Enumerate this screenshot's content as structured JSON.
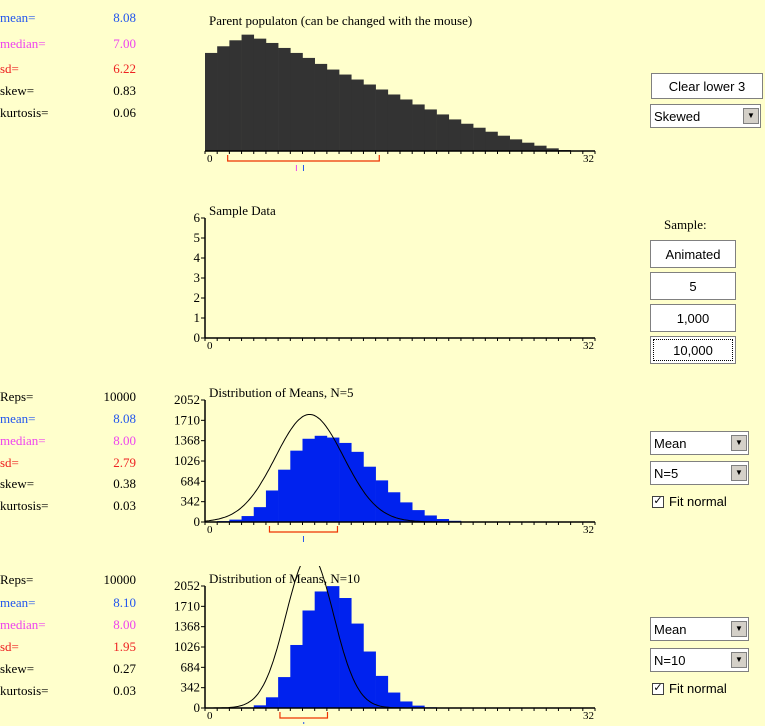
{
  "colors": {
    "mean": "#2255ee",
    "median": "#ee44ee",
    "sd": "#ee2222",
    "text": "#000000",
    "bar_parent": "#333333",
    "bar_means": "#0022ee",
    "range_box": "#ee3300"
  },
  "parent_stats": {
    "mean": {
      "label": "mean=",
      "value": "8.08"
    },
    "median": {
      "label": "median=",
      "value": "7.00"
    },
    "sd": {
      "label": "sd=",
      "value": "6.22"
    },
    "skew": {
      "label": "skew=",
      "value": "0.83"
    },
    "kurtosis": {
      "label": "kurtosis=",
      "value": "0.06"
    }
  },
  "means5_stats": {
    "reps": {
      "label": "Reps=",
      "value": "10000"
    },
    "mean": {
      "label": "mean=",
      "value": "8.08"
    },
    "median": {
      "label": "median=",
      "value": "8.00"
    },
    "sd": {
      "label": "sd=",
      "value": "2.79"
    },
    "skew": {
      "label": "skew=",
      "value": "0.38"
    },
    "kurtosis": {
      "label": "kurtosis=",
      "value": "0.03"
    }
  },
  "means10_stats": {
    "reps": {
      "label": "Reps=",
      "value": "10000"
    },
    "mean": {
      "label": "mean=",
      "value": "8.10"
    },
    "median": {
      "label": "median=",
      "value": "8.00"
    },
    "sd": {
      "label": "sd=",
      "value": "1.95"
    },
    "skew": {
      "label": "skew=",
      "value": "0.27"
    },
    "kurtosis": {
      "label": "kurtosis=",
      "value": "0.03"
    }
  },
  "controls": {
    "clear_lower": "Clear lower 3",
    "distribution": "Skewed",
    "sample_label": "Sample:",
    "animated": "Animated",
    "n5": "5",
    "n1000": "1,000",
    "n10000": "10,000",
    "stat1": "Mean",
    "n1": "N=5",
    "fit1": "Fit normal",
    "stat2": "Mean",
    "n2": "N=10",
    "fit2": "Fit normal",
    "fit_checked_glyph": "✓"
  },
  "chart_data": [
    {
      "type": "bar",
      "title": "Parent populaton (can be changed with the mouse)",
      "x_range": [
        0,
        32
      ],
      "x_tick_labels": [
        "0",
        "32"
      ],
      "values": [
        2.95,
        3.15,
        3.33,
        3.5,
        3.38,
        3.25,
        3.1,
        2.95,
        2.8,
        2.62,
        2.45,
        2.3,
        2.15,
        2.0,
        1.85,
        1.7,
        1.55,
        1.4,
        1.25,
        1.1,
        0.95,
        0.82,
        0.7,
        0.58,
        0.46,
        0.35,
        0.25,
        0.16,
        0.08,
        0.03
      ],
      "ymax": 3.7,
      "mean": 8.08,
      "median": 7.0,
      "sd": 6.22
    },
    {
      "type": "scatter",
      "title": "Sample Data",
      "x_range": [
        0,
        32
      ],
      "x_tick_labels": [
        "0",
        "32"
      ],
      "y_ticks": [
        "0",
        "1",
        "2",
        "3",
        "4",
        "5",
        "6"
      ],
      "ylim": [
        0,
        6
      ],
      "values": []
    },
    {
      "type": "bar",
      "title": "Distribution of Means, N=5",
      "x_range": [
        0,
        32
      ],
      "x_tick_labels": [
        "0",
        "32"
      ],
      "y_ticks": [
        "0",
        "342",
        "684",
        "1026",
        "1368",
        "1710",
        "2052"
      ],
      "ylim": [
        0,
        2052
      ],
      "values": [
        5,
        15,
        40,
        100,
        250,
        530,
        880,
        1200,
        1400,
        1450,
        1420,
        1330,
        1180,
        930,
        700,
        500,
        330,
        200,
        110,
        50,
        20,
        8,
        3,
        1,
        0,
        0,
        0,
        0,
        0,
        0,
        0,
        0
      ],
      "fit_normal_mean": 8.08,
      "fit_normal_sd": 2.79,
      "mean": 8.08,
      "sd": 2.79
    },
    {
      "type": "bar",
      "title": "Distribution of Means, N=10",
      "x_range": [
        0,
        32
      ],
      "x_tick_labels": [
        "0",
        "32"
      ],
      "y_ticks": [
        "0",
        "342",
        "684",
        "1026",
        "1368",
        "1710",
        "2052"
      ],
      "ylim": [
        0,
        2052
      ],
      "values": [
        0,
        0,
        2,
        10,
        45,
        180,
        520,
        1060,
        1640,
        1960,
        2050,
        1850,
        1420,
        950,
        540,
        260,
        110,
        40,
        12,
        3,
        1,
        0,
        0,
        0,
        0,
        0,
        0,
        0,
        0,
        0,
        0,
        0
      ],
      "fit_normal_mean": 8.1,
      "fit_normal_sd": 1.95,
      "mean": 8.1,
      "sd": 1.95
    }
  ]
}
